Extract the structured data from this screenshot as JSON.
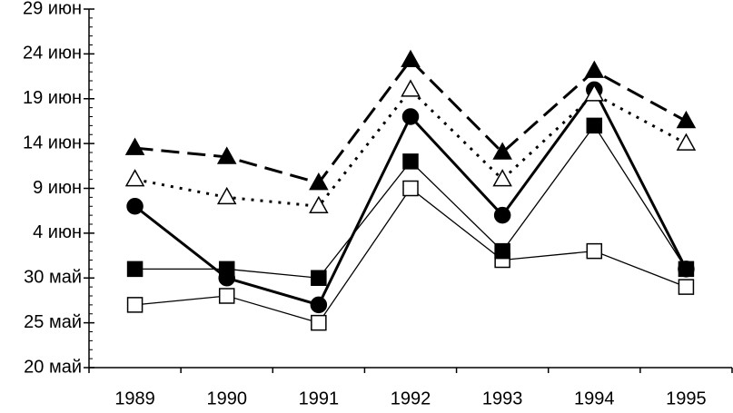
{
  "chart_data": {
    "type": "line",
    "categories": [
      "1989",
      "1990",
      "1991",
      "1992",
      "1993",
      "1994",
      "1995"
    ],
    "ylim": [
      20,
      60
    ],
    "yticks": [
      {
        "value": 20,
        "label": "20 май"
      },
      {
        "value": 25,
        "label": "25 май"
      },
      {
        "value": 30,
        "label": "30 май"
      },
      {
        "value": 35,
        "label": "4 июн"
      },
      {
        "value": 40,
        "label": "9 июн"
      },
      {
        "value": 45,
        "label": "14 июн"
      },
      {
        "value": 50,
        "label": "19 июн"
      },
      {
        "value": 55,
        "label": "24 июн"
      },
      {
        "value": 60,
        "label": "29 июн"
      }
    ],
    "series": [
      {
        "color": "#000000",
        "marker": "square",
        "filled": false,
        "line_width": 1.3,
        "dash": "none",
        "values": [
          27,
          28,
          25,
          40,
          32,
          33,
          29
        ]
      },
      {
        "color": "#000000",
        "marker": "square",
        "filled": true,
        "line_width": 1.3,
        "dash": "none",
        "values": [
          31,
          31,
          30,
          43,
          33,
          47,
          31
        ]
      },
      {
        "color": "#000000",
        "marker": "circle",
        "filled": true,
        "line_width": 3,
        "dash": "none",
        "values": [
          38,
          30,
          27,
          48,
          37,
          51,
          31
        ]
      },
      {
        "color": "#000000",
        "marker": "triangle",
        "filled": false,
        "line_width": 3,
        "dash": "3,7",
        "values": [
          41,
          39,
          38,
          51,
          41,
          50.5,
          45
        ]
      },
      {
        "color": "#000000",
        "marker": "triangle",
        "filled": true,
        "line_width": 3,
        "dash": "20,9",
        "values": [
          44.5,
          43.5,
          40.6,
          54.3,
          44,
          53.1,
          47.5
        ]
      }
    ]
  }
}
